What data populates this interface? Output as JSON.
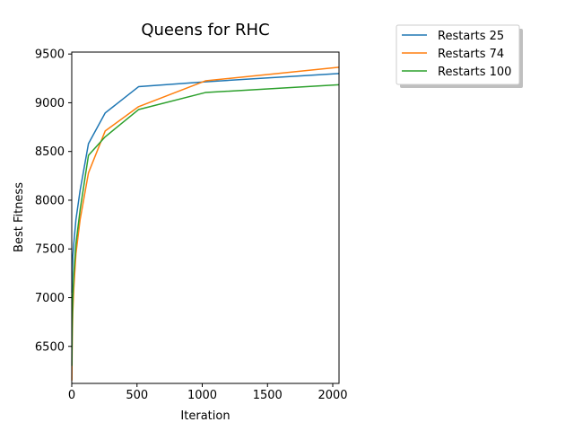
{
  "chart_data": {
    "type": "line",
    "title": "Queens for RHC",
    "xlabel": "Iteration",
    "ylabel": "Best Fitness",
    "xlim": [
      0,
      2048
    ],
    "ylim": [
      6120,
      9520
    ],
    "xticks": [
      0,
      500,
      1000,
      1500,
      2000
    ],
    "yticks": [
      6500,
      7000,
      7500,
      8000,
      8500,
      9000,
      9500
    ],
    "grid": false,
    "legend_position": "outside-top-right",
    "x": [
      1,
      2,
      4,
      8,
      16,
      32,
      64,
      128,
      256,
      512,
      1024,
      2048
    ],
    "series": [
      {
        "name": "Restarts 25",
        "color": "#1f77b4",
        "values": [
          7050,
          7150,
          7280,
          7420,
          7560,
          7800,
          8100,
          8580,
          8895,
          9165,
          9215,
          9300
        ]
      },
      {
        "name": "Restarts 74",
        "color": "#ff7f0e",
        "values": [
          6150,
          6350,
          6600,
          6850,
          7100,
          7450,
          7800,
          8280,
          8710,
          8960,
          9225,
          9365
        ]
      },
      {
        "name": "Restarts 100",
        "color": "#2ca02c",
        "values": [
          6300,
          6500,
          6750,
          7000,
          7250,
          7550,
          7900,
          8460,
          8650,
          8930,
          9105,
          9185
        ]
      }
    ]
  }
}
